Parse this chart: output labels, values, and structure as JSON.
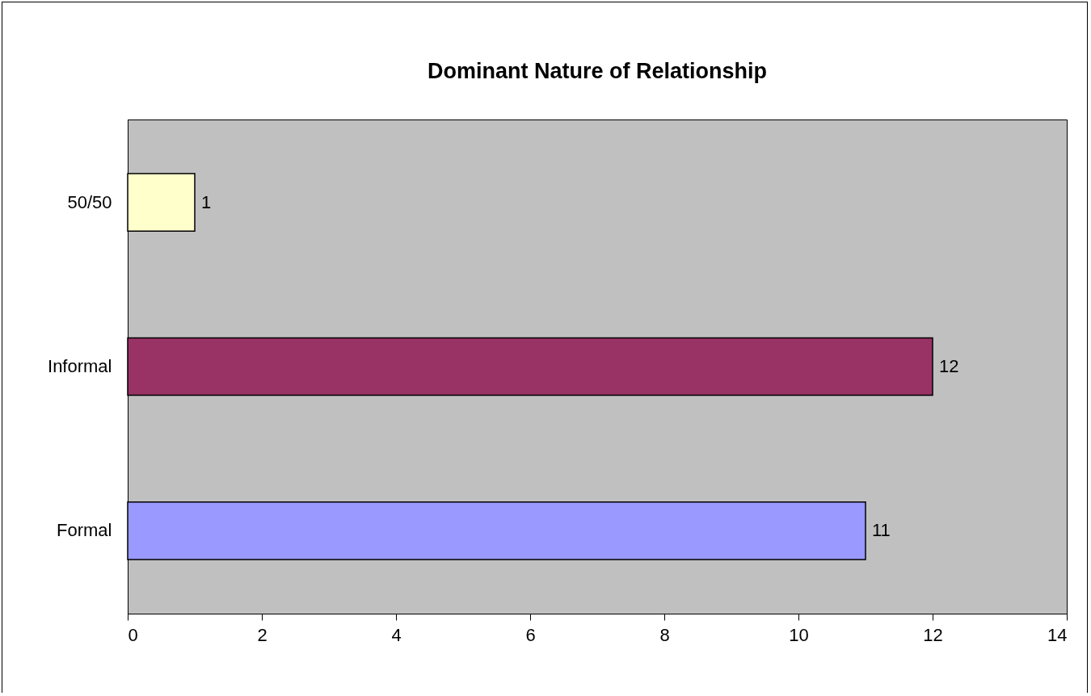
{
  "chart_data": {
    "type": "bar",
    "title": "Dominant Nature of Relationship",
    "orientation": "horizontal",
    "categories": [
      "50/50",
      "Informal",
      "Formal"
    ],
    "values": [
      1,
      12,
      11
    ],
    "colors": [
      "#ffffcc",
      "#993366",
      "#9999ff"
    ],
    "xlim": [
      0,
      14
    ],
    "xticks": [
      0,
      2,
      4,
      6,
      8,
      10,
      12,
      14
    ],
    "data_labels": true
  }
}
